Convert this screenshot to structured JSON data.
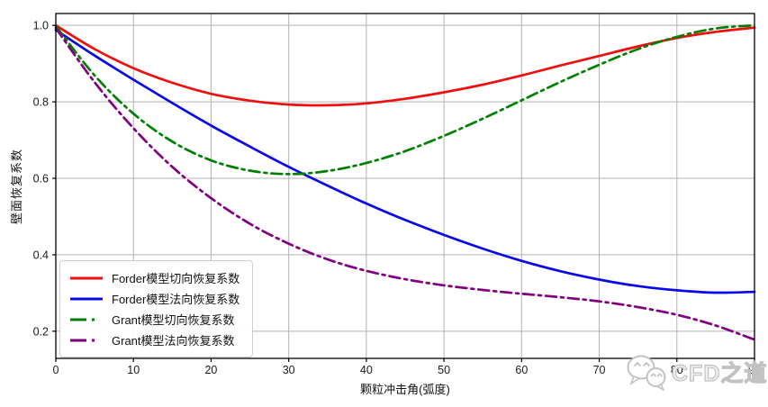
{
  "watermark": {
    "text": "CFD之道",
    "color": "#c2c2c2"
  },
  "axes": {
    "tick_color": "#1a1a1a",
    "grid_color": "#b3b3b3",
    "spine_color": "#000000"
  },
  "chart_data": {
    "type": "line",
    "title": "",
    "xlabel": "颗粒冲击角(弧度)",
    "ylabel": "壁面恢复系数",
    "xlim": [
      0,
      90
    ],
    "ylim": [
      0.129,
      1.031
    ],
    "xticks": [
      0,
      10,
      20,
      30,
      40,
      50,
      60,
      70,
      80,
      90
    ],
    "yticks": [
      0.2,
      0.4,
      0.6,
      0.8,
      1.0
    ],
    "grid": true,
    "legend_position": "lower-left",
    "x": [
      0,
      5,
      10,
      15,
      20,
      25,
      30,
      35,
      40,
      45,
      50,
      55,
      60,
      65,
      70,
      75,
      80,
      85,
      90
    ],
    "series": [
      {
        "name": "Forder模型切向恢复系数",
        "color": "#f10e0e",
        "style": "solid",
        "values": [
          1.0,
          0.938,
          0.888,
          0.85,
          0.821,
          0.803,
          0.793,
          0.791,
          0.796,
          0.808,
          0.825,
          0.845,
          0.869,
          0.895,
          0.92,
          0.945,
          0.967,
          0.983,
          0.994
        ]
      },
      {
        "name": "Forder模型法向恢复系数",
        "color": "#0808e8",
        "style": "solid",
        "values": [
          0.988,
          0.921,
          0.858,
          0.797,
          0.738,
          0.683,
          0.63,
          0.581,
          0.534,
          0.491,
          0.452,
          0.416,
          0.384,
          0.357,
          0.335,
          0.318,
          0.307,
          0.301,
          0.303
        ]
      },
      {
        "name": "Grant模型切向恢复系数",
        "color": "#008000",
        "style": "dashdot",
        "values": [
          0.998,
          0.869,
          0.769,
          0.696,
          0.647,
          0.62,
          0.611,
          0.619,
          0.64,
          0.671,
          0.711,
          0.756,
          0.804,
          0.852,
          0.897,
          0.938,
          0.97,
          0.992,
          1.0
        ]
      },
      {
        "name": "Grant模型法向恢复系数",
        "color": "#800080",
        "style": "dashdot",
        "values": [
          0.993,
          0.851,
          0.731,
          0.63,
          0.548,
          0.481,
          0.429,
          0.388,
          0.358,
          0.336,
          0.32,
          0.308,
          0.298,
          0.289,
          0.278,
          0.263,
          0.243,
          0.215,
          0.178
        ]
      }
    ]
  }
}
